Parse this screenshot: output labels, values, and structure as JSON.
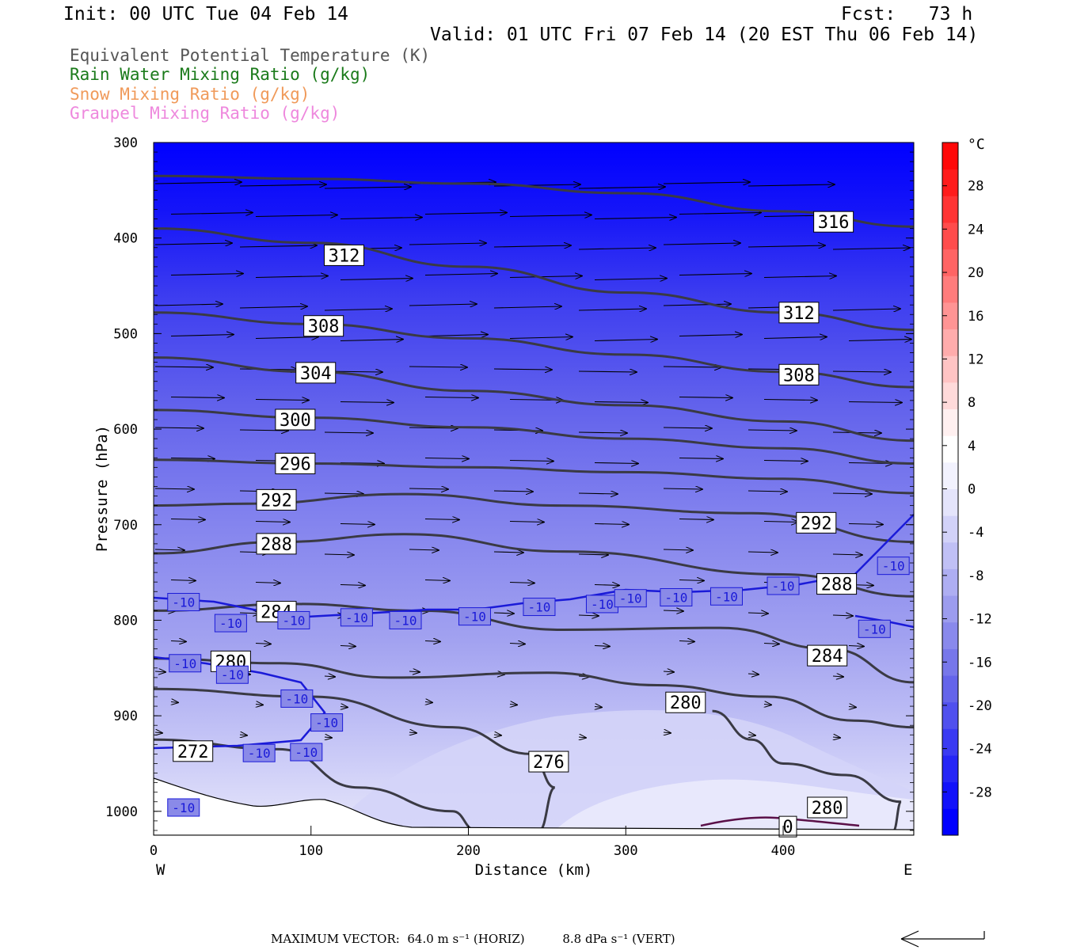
{
  "header": {
    "init": "Init: 00 UTC Tue 04 Feb 14",
    "fcst": "Fcst:   73 h",
    "valid": "Valid: 01 UTC Fri 07 Feb 14 (20 EST Thu 06 Feb 14)"
  },
  "legend": [
    {
      "label": "Equivalent Potential Temperature (K)",
      "color": "#555555"
    },
    {
      "label": "Rain Water Mixing Ratio (g/kg)",
      "color": "#1a7a1a"
    },
    {
      "label": "Snow Mixing Ratio (g/kg)",
      "color": "#f09a5a"
    },
    {
      "label": "Graupel Mixing Ratio (g/kg)",
      "color": "#ee88dd"
    }
  ],
  "chart_data": {
    "type": "cross-section",
    "xlabel": "Distance (km)",
    "ylabel": "Pressure (hPa)",
    "xlim": [
      0,
      483
    ],
    "ylim": [
      1025,
      300
    ],
    "x_ticks": [
      "0",
      "100",
      "200",
      "300",
      "400"
    ],
    "y_ticks": [
      "300",
      "400",
      "500",
      "600",
      "700",
      "800",
      "900",
      "1000"
    ],
    "x_ends": {
      "left": "W",
      "right": "E"
    },
    "colorbar": {
      "unit": "°C",
      "labels": [
        "28",
        "24",
        "20",
        "16",
        "12",
        "8",
        "4",
        "0",
        "-4",
        "-8",
        "-12",
        "-16",
        "-20",
        "-24",
        "-28"
      ],
      "range": [
        -32,
        32
      ],
      "colors": [
        "#0000ff",
        "#1111fa",
        "#2525f6",
        "#3a3af2",
        "#5050ee",
        "#6464ea",
        "#7777ea",
        "#8989ec",
        "#9c9cee",
        "#aeaef2",
        "#c0c0f5",
        "#d2d2f8",
        "#e4e4fb",
        "#f2f2fe",
        "#ffffff",
        "#fff0f0",
        "#ffdada",
        "#ffc4c4",
        "#ffacac",
        "#ff9494",
        "#ff7c7c",
        "#ff6464",
        "#ff4c4c",
        "#ff3434",
        "#ff1c1c",
        "#ff0808"
      ]
    },
    "theta_e_contours": [
      {
        "label": "316",
        "label_at": [
          432,
          383
        ],
        "points": [
          [
            0,
            335
          ],
          [
            100,
            338
          ],
          [
            200,
            343
          ],
          [
            300,
            353
          ],
          [
            400,
            372
          ],
          [
            483,
            388
          ]
        ]
      },
      {
        "label": "312",
        "label_at": [
          121,
          418
        ],
        "points": [
          [
            0,
            390
          ],
          [
            100,
            405
          ],
          [
            200,
            430
          ],
          [
            300,
            457
          ],
          [
            400,
            478
          ],
          [
            483,
            496
          ]
        ]
      },
      {
        "label": "312",
        "label_at": [
          410,
          478
        ],
        "points": []
      },
      {
        "label": "308",
        "label_at": [
          108,
          492
        ],
        "points": [
          [
            0,
            478
          ],
          [
            100,
            490
          ],
          [
            200,
            505
          ],
          [
            300,
            522
          ],
          [
            400,
            540
          ],
          [
            483,
            556
          ]
        ]
      },
      {
        "label": "308",
        "label_at": [
          410,
          543
        ],
        "points": []
      },
      {
        "label": "304",
        "label_at": [
          103,
          541
        ],
        "points": [
          [
            0,
            525
          ],
          [
            100,
            540
          ],
          [
            200,
            560
          ],
          [
            300,
            575
          ],
          [
            400,
            592
          ],
          [
            483,
            612
          ]
        ]
      },
      {
        "label": "300",
        "label_at": [
          90,
          590
        ],
        "points": [
          [
            0,
            580
          ],
          [
            100,
            588
          ],
          [
            200,
            598
          ],
          [
            300,
            610
          ],
          [
            400,
            620
          ],
          [
            483,
            636
          ]
        ]
      },
      {
        "label": "296",
        "label_at": [
          90,
          636
        ],
        "points": [
          [
            0,
            632
          ],
          [
            100,
            636
          ],
          [
            200,
            640
          ],
          [
            300,
            645
          ],
          [
            400,
            652
          ],
          [
            483,
            667
          ]
        ]
      },
      {
        "label": "292",
        "label_at": [
          78,
          674
        ],
        "points": [
          [
            0,
            680
          ],
          [
            60,
            678
          ],
          [
            160,
            668
          ],
          [
            260,
            680
          ],
          [
            380,
            688
          ],
          [
            483,
            718
          ]
        ]
      },
      {
        "label": "292",
        "label_at": [
          421,
          698
        ],
        "points": []
      },
      {
        "label": "288",
        "label_at": [
          78,
          720
        ],
        "points": [
          [
            0,
            730
          ],
          [
            80,
            718
          ],
          [
            160,
            710
          ],
          [
            260,
            728
          ],
          [
            400,
            752
          ],
          [
            483,
            775
          ]
        ]
      },
      {
        "label": "288",
        "label_at": [
          434,
          762
        ],
        "points": []
      },
      {
        "label": "284",
        "label_at": [
          78,
          791
        ],
        "points": [
          [
            0,
            790
          ],
          [
            90,
            783
          ],
          [
            170,
            790
          ],
          [
            260,
            810
          ],
          [
            360,
            808
          ],
          [
            430,
            830
          ],
          [
            483,
            865
          ]
        ]
      },
      {
        "label": "284",
        "label_at": [
          428,
          837
        ],
        "points": []
      },
      {
        "label": "280",
        "label_at": [
          49,
          843
        ],
        "points": [
          [
            0,
            840
          ],
          [
            80,
            845
          ],
          [
            150,
            860
          ],
          [
            250,
            855
          ],
          [
            320,
            868
          ],
          [
            390,
            880
          ],
          [
            445,
            905
          ],
          [
            483,
            912
          ]
        ]
      },
      {
        "label": "280",
        "label_at": [
          338,
          886
        ],
        "points": []
      },
      {
        "label": "276",
        "label_at": [
          251,
          948
        ],
        "points": [
          [
            0,
            872
          ],
          [
            100,
            880
          ],
          [
            190,
            912
          ],
          [
            240,
            940
          ],
          [
            255,
            975
          ],
          [
            245,
            1020
          ]
        ]
      },
      {
        "label": "272",
        "label_at": [
          25,
          937
        ],
        "points": [
          [
            0,
            925
          ],
          [
            80,
            935
          ],
          [
            130,
            975
          ],
          [
            190,
            1000
          ],
          [
            205,
            1020
          ]
        ]
      },
      {
        "label": "280",
        "label_at": [
          428,
          996
        ],
        "points": [
          [
            355,
            895
          ],
          [
            380,
            925
          ],
          [
            400,
            950
          ],
          [
            440,
            962
          ],
          [
            475,
            990
          ],
          [
            470,
            1020
          ]
        ]
      },
      {
        "label": "0",
        "label_at": [
          403,
          1016
        ],
        "points": []
      }
    ],
    "temperature_contour_labels": [
      {
        "label": "-10",
        "at": [
          19,
          781
        ]
      },
      {
        "label": "-10",
        "at": [
          49,
          803
        ]
      },
      {
        "label": "-10",
        "at": [
          89,
          800
        ]
      },
      {
        "label": "-10",
        "at": [
          129,
          797
        ]
      },
      {
        "label": "-10",
        "at": [
          160,
          800
        ]
      },
      {
        "label": "-10",
        "at": [
          204,
          796
        ]
      },
      {
        "label": "-10",
        "at": [
          245,
          786
        ]
      },
      {
        "label": "-10",
        "at": [
          285,
          783
        ]
      },
      {
        "label": "-10",
        "at": [
          303,
          777
        ]
      },
      {
        "label": "-10",
        "at": [
          332,
          776
        ]
      },
      {
        "label": "-10",
        "at": [
          364,
          775
        ]
      },
      {
        "label": "-10",
        "at": [
          400,
          764
        ]
      },
      {
        "label": "-10",
        "at": [
          470,
          743
        ]
      },
      {
        "label": "-10",
        "at": [
          458,
          809
        ]
      },
      {
        "label": "-10",
        "at": [
          20,
          845
        ]
      },
      {
        "label": "-10",
        "at": [
          50,
          857
        ]
      },
      {
        "label": "-10",
        "at": [
          91,
          882
        ]
      },
      {
        "label": "-10",
        "at": [
          110,
          907
        ]
      },
      {
        "label": "-10",
        "at": [
          67,
          939
        ]
      },
      {
        "label": "-10",
        "at": [
          97,
          938
        ]
      },
      {
        "label": "-10",
        "at": [
          19,
          996
        ]
      }
    ],
    "vector_legend": {
      "text": "MAXIMUM VECTOR:  64.0 m s⁻¹ (HORIZ)          8.8 dPa s⁻¹ (VERT)",
      "horiz_max": 64.0,
      "vert_max": 8.8
    }
  }
}
